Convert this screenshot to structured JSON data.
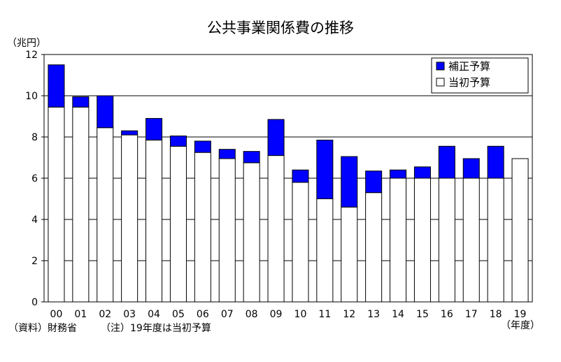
{
  "chart_data": {
    "type": "bar",
    "stacked": true,
    "title": "公共事業関係費の推移",
    "ylabel": "（兆円）",
    "xlabel": "（年度）",
    "categories": [
      "00",
      "01",
      "02",
      "03",
      "04",
      "05",
      "06",
      "07",
      "08",
      "09",
      "10",
      "11",
      "12",
      "13",
      "14",
      "15",
      "16",
      "17",
      "18",
      "19"
    ],
    "series": [
      {
        "name": "当初予算",
        "color": "#ffffff",
        "values": [
          9.45,
          9.45,
          8.45,
          8.1,
          7.85,
          7.55,
          7.25,
          6.95,
          6.75,
          7.1,
          5.8,
          5.0,
          4.6,
          5.3,
          6.0,
          6.0,
          6.0,
          6.0,
          6.0,
          6.95
        ]
      },
      {
        "name": "補正予算",
        "color": "#0000ff",
        "values": [
          2.05,
          0.5,
          1.55,
          0.2,
          1.05,
          0.5,
          0.55,
          0.45,
          0.55,
          1.75,
          0.6,
          2.85,
          2.45,
          1.05,
          0.4,
          0.55,
          1.55,
          0.95,
          1.55,
          0
        ]
      }
    ],
    "ylim": [
      0,
      12
    ],
    "yticks": [
      "0",
      "2",
      "4",
      "6",
      "8",
      "10",
      "12"
    ],
    "grid": true,
    "legend": {
      "position": "top-right"
    }
  },
  "notes": {
    "source": "（資料）財務省",
    "remark": "（注）19年度は当初予算"
  }
}
